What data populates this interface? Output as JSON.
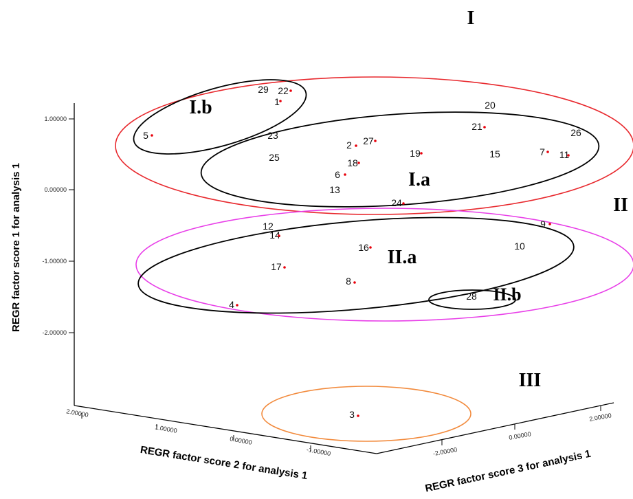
{
  "chart_data": {
    "type": "scatter",
    "title": "",
    "axes": {
      "vertical": {
        "label": "REGR factor score   1 for analysis   1",
        "ticks": [
          "1.00000",
          "0.00000",
          "-1.00000",
          "-2.00000"
        ]
      },
      "left_depth": {
        "label": "REGR factor score   2 for analysis   1",
        "ticks": [
          "2.00000",
          "1.00000",
          "0.00000",
          "-1.00000"
        ]
      },
      "right_depth": {
        "label": "REGR factor score   3 for analysis   1",
        "ticks": [
          "-2.00000",
          "0.00000",
          "2.00000"
        ]
      }
    },
    "points": [
      {
        "label": "1"
      },
      {
        "label": "2"
      },
      {
        "label": "3"
      },
      {
        "label": "4"
      },
      {
        "label": "5"
      },
      {
        "label": "6"
      },
      {
        "label": "7"
      },
      {
        "label": "8"
      },
      {
        "label": "9"
      },
      {
        "label": "10"
      },
      {
        "label": "11"
      },
      {
        "label": "12"
      },
      {
        "label": "13"
      },
      {
        "label": "14"
      },
      {
        "label": "15"
      },
      {
        "label": "16"
      },
      {
        "label": "17"
      },
      {
        "label": "18"
      },
      {
        "label": "19"
      },
      {
        "label": "20"
      },
      {
        "label": "21"
      },
      {
        "label": "22"
      },
      {
        "label": "23"
      },
      {
        "label": "24"
      },
      {
        "label": "25"
      },
      {
        "label": "26"
      },
      {
        "label": "27"
      },
      {
        "label": "28"
      },
      {
        "label": "29"
      }
    ],
    "clusters": [
      {
        "label": "I",
        "color": "#e8292e"
      },
      {
        "label": "I.a",
        "color": "#000000"
      },
      {
        "label": "I.b",
        "color": "#000000"
      },
      {
        "label": "II",
        "color": "#e83ee8"
      },
      {
        "label": "II.a",
        "color": "#000000"
      },
      {
        "label": "II.b",
        "color": "#000000"
      },
      {
        "label": "III",
        "color": "#f28a3c"
      }
    ],
    "point_color": "#e8000b",
    "grid": false,
    "legend": "none"
  }
}
